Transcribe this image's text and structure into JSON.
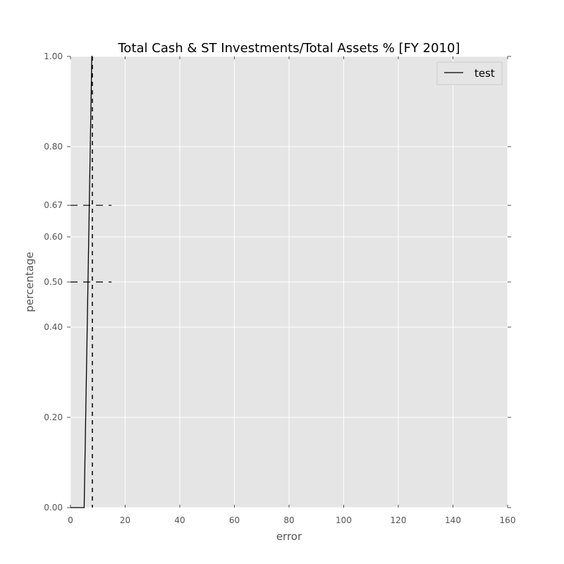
{
  "chart_data": {
    "type": "line",
    "title": "Total Cash & ST Investments/Total Assets % [FY 2010]",
    "xlabel": "error",
    "ylabel": "percentage",
    "xlim": [
      0,
      160
    ],
    "ylim": [
      0,
      1
    ],
    "x_ticks": [
      0,
      20,
      40,
      60,
      80,
      100,
      120,
      140,
      160
    ],
    "x_tick_labels": [
      "0",
      "20",
      "40",
      "60",
      "80",
      "100",
      "120",
      "140",
      "160"
    ],
    "y_ticks": [
      0.0,
      0.2,
      0.4,
      0.5,
      0.6,
      0.67,
      0.8,
      1.0
    ],
    "y_tick_labels": [
      "0.00",
      "0.20",
      "0.40",
      "0.50",
      "0.60",
      "0.67",
      "0.80",
      "1.00"
    ],
    "grid": true,
    "legend_position": "top-right",
    "series": [
      {
        "name": "test",
        "color": "#000000",
        "x": [
          0,
          5,
          7.8,
          8
        ],
        "y": [
          0,
          0,
          1,
          1
        ]
      }
    ],
    "reference_lines": [
      {
        "orientation": "vertical",
        "x": 8,
        "style": "dashed",
        "color": "#000000"
      },
      {
        "orientation": "horizontal",
        "y": 0.5,
        "x_range": [
          0,
          15
        ],
        "style": "dashed",
        "color": "#000000"
      },
      {
        "orientation": "horizontal",
        "y": 0.67,
        "x_range": [
          0,
          15
        ],
        "style": "dashed",
        "color": "#000000"
      }
    ],
    "colors": {
      "plot_background": "#e5e5e5",
      "grid": "#ffffff",
      "tick_text": "#555555"
    }
  }
}
